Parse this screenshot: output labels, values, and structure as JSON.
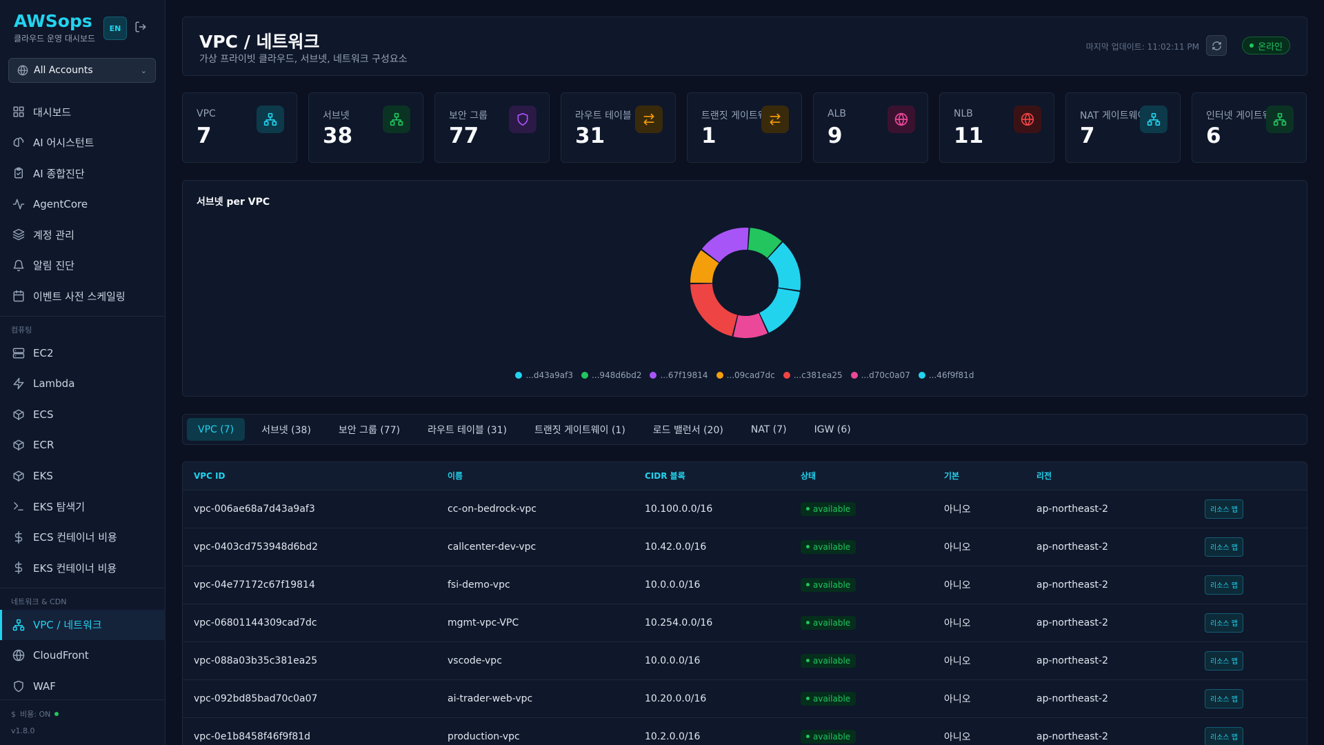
{
  "brand": {
    "title": "AWSops",
    "subtitle": "클라우드 운영 대시보드",
    "lang": "EN"
  },
  "account_select": {
    "value": "All Accounts"
  },
  "nav": {
    "main": [
      {
        "label": "대시보드",
        "icon": "grid-icon"
      },
      {
        "label": "AI 어시스턴트",
        "icon": "brain-icon"
      },
      {
        "label": "AI 종합진단",
        "icon": "clipboard-check-icon"
      },
      {
        "label": "AgentCore",
        "icon": "activity-icon"
      },
      {
        "label": "계정 관리",
        "icon": "layers-icon"
      },
      {
        "label": "알림 진단",
        "icon": "bell-icon"
      },
      {
        "label": "이벤트 사전 스케일링",
        "icon": "calendar-icon"
      }
    ],
    "compute_section": "컴퓨팅",
    "compute": [
      {
        "label": "EC2",
        "icon": "server-icon"
      },
      {
        "label": "Lambda",
        "icon": "bolt-icon"
      },
      {
        "label": "ECS",
        "icon": "box-icon"
      },
      {
        "label": "ECR",
        "icon": "box-icon"
      },
      {
        "label": "EKS",
        "icon": "box-icon"
      },
      {
        "label": "EKS 탐색기",
        "icon": "terminal-icon"
      },
      {
        "label": "ECS 컨테이너 비용",
        "icon": "dollar-icon"
      },
      {
        "label": "EKS 컨테이너 비용",
        "icon": "dollar-icon"
      }
    ],
    "network_section": "네트워크 & CDN",
    "network": [
      {
        "label": "VPC / 네트워크",
        "icon": "network-icon"
      },
      {
        "label": "CloudFront",
        "icon": "globe-icon"
      },
      {
        "label": "WAF",
        "icon": "shield-icon"
      }
    ]
  },
  "footer": {
    "cost": "비용: ON",
    "version": "v1.8.0"
  },
  "header": {
    "title": "VPC / 네트워크",
    "subtitle": "가상 프라이빗 클라우드, 서브넷, 네트워크 구성요소",
    "last_update": "마지막 업데이트: 11:02:11 PM",
    "status": "온라인"
  },
  "stats": [
    {
      "label": "VPC",
      "value": "7",
      "icon": "network-icon",
      "color": "#22d3ee",
      "bg": "#0c3a4a"
    },
    {
      "label": "서브넷",
      "value": "38",
      "icon": "network-icon",
      "color": "#22c55e",
      "bg": "#0b3324"
    },
    {
      "label": "보안 그룹",
      "value": "77",
      "icon": "shield-icon",
      "color": "#a855f7",
      "bg": "#2a1a45"
    },
    {
      "label": "라우트 테이블",
      "value": "31",
      "icon": "arrows-icon",
      "color": "#f59e0b",
      "bg": "#3a2a0c"
    },
    {
      "label": "트랜짓 게이트웨이",
      "value": "1",
      "icon": "arrows-icon",
      "color": "#f59e0b",
      "bg": "#3a2a0c"
    },
    {
      "label": "ALB",
      "value": "9",
      "icon": "globe-icon",
      "color": "#ec4899",
      "bg": "#3a1230"
    },
    {
      "label": "NLB",
      "value": "11",
      "icon": "globe-icon",
      "color": "#ef4444",
      "bg": "#3a1216"
    },
    {
      "label": "NAT 게이트웨이",
      "value": "7",
      "icon": "network-icon",
      "color": "#22d3ee",
      "bg": "#0c3a4a"
    },
    {
      "label": "인터넷 게이트웨이",
      "value": "6",
      "icon": "network-icon",
      "color": "#22c55e",
      "bg": "#0b3324"
    }
  ],
  "chart_data": {
    "type": "pie",
    "title": "서브넷 per VPC",
    "categories": [
      "...d43a9af3",
      "...948d6bd2",
      "...67f19814",
      "...09cad7dc",
      "...c381ea25",
      "...d70c0a07",
      "...46f9f81d"
    ],
    "values": [
      6,
      4,
      6,
      4,
      8,
      4,
      6
    ],
    "colors": [
      "#22d3ee",
      "#22c55e",
      "#a855f7",
      "#f59e0b",
      "#ef4444",
      "#ec4899",
      "#22d3ee"
    ]
  },
  "tabs": [
    "VPC (7)",
    "서브넷 (38)",
    "보안 그룹 (77)",
    "라우트 테이블 (31)",
    "트랜짓 게이트웨이 (1)",
    "로드 밸런서 (20)",
    "NAT (7)",
    "IGW (6)"
  ],
  "table": {
    "headers": [
      "VPC ID",
      "이름",
      "CIDR 블록",
      "상태",
      "기본",
      "리전",
      ""
    ],
    "action_label": "리소스 맵",
    "rows": [
      {
        "id": "vpc-006ae68a7d43a9af3",
        "name": "cc-on-bedrock-vpc",
        "cidr": "10.100.0.0/16",
        "state": "available",
        "default": "아니오",
        "region": "ap-northeast-2"
      },
      {
        "id": "vpc-0403cd753948d6bd2",
        "name": "callcenter-dev-vpc",
        "cidr": "10.42.0.0/16",
        "state": "available",
        "default": "아니오",
        "region": "ap-northeast-2"
      },
      {
        "id": "vpc-04e77172c67f19814",
        "name": "fsi-demo-vpc",
        "cidr": "10.0.0.0/16",
        "state": "available",
        "default": "아니오",
        "region": "ap-northeast-2"
      },
      {
        "id": "vpc-06801144309cad7dc",
        "name": "mgmt-vpc-VPC",
        "cidr": "10.254.0.0/16",
        "state": "available",
        "default": "아니오",
        "region": "ap-northeast-2"
      },
      {
        "id": "vpc-088a03b35c381ea25",
        "name": "vscode-vpc",
        "cidr": "10.0.0.0/16",
        "state": "available",
        "default": "아니오",
        "region": "ap-northeast-2"
      },
      {
        "id": "vpc-092bd85bad70c0a07",
        "name": "ai-trader-web-vpc",
        "cidr": "10.20.0.0/16",
        "state": "available",
        "default": "아니오",
        "region": "ap-northeast-2"
      },
      {
        "id": "vpc-0e1b8458f46f9f81d",
        "name": "production-vpc",
        "cidr": "10.2.0.0/16",
        "state": "available",
        "default": "아니오",
        "region": "ap-northeast-2"
      }
    ]
  }
}
